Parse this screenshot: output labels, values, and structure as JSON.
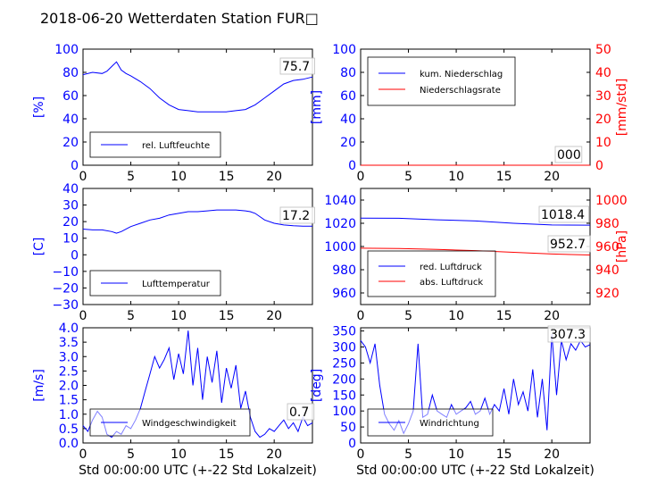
{
  "title": "2018-06-20 Wetterdaten Station FUR□",
  "colors": {
    "primary": "#0000ff",
    "secondary": "#ff0000"
  },
  "chart_data": [
    {
      "id": "humidity",
      "type": "line",
      "xlim": [
        0,
        24
      ],
      "ylim": [
        0,
        100
      ],
      "xticks": [
        "0",
        "5",
        "10",
        "15",
        "20"
      ],
      "yticks": [
        "0",
        "20",
        "40",
        "60",
        "80",
        "100"
      ],
      "ylabel": "[%]",
      "latest": "75.7",
      "legend": [
        "rel. Luftfeuchte"
      ],
      "series": [
        {
          "name": "rel. Luftfeuchte",
          "color": "#0000ff",
          "x": [
            0,
            1,
            2,
            2.5,
            3,
            3.5,
            4,
            4.5,
            5,
            6,
            7,
            8,
            9,
            10,
            11,
            12,
            13,
            14,
            15,
            16,
            17,
            17.5,
            18,
            19,
            20,
            21,
            22,
            23,
            24
          ],
          "y": [
            78,
            80,
            79,
            81,
            85,
            89,
            82,
            79,
            77,
            72,
            66,
            58,
            52,
            48,
            47,
            46,
            46,
            46,
            46,
            47,
            48,
            50,
            52,
            58,
            64,
            70,
            73,
            74,
            76
          ]
        }
      ]
    },
    {
      "id": "precipitation",
      "type": "line",
      "xlim": [
        0,
        24
      ],
      "ylim": [
        0,
        100
      ],
      "y2lim": [
        0,
        50
      ],
      "xticks": [
        "0",
        "5",
        "10",
        "15",
        "20"
      ],
      "yticks": [
        "0",
        "20",
        "40",
        "60",
        "80",
        "100"
      ],
      "y2ticks": [
        "0",
        "10",
        "20",
        "30",
        "40",
        "50"
      ],
      "ylabel": "[mm]",
      "y2label": "[mm/std]",
      "latest": "000",
      "legend": [
        "kum. Niederschlag",
        "Niederschlagsrate"
      ],
      "series": [
        {
          "name": "kum. Niederschlag",
          "color": "#0000ff",
          "axis": "left",
          "x": [
            0,
            24
          ],
          "y": [
            0,
            0
          ]
        },
        {
          "name": "Niederschlagsrate",
          "color": "#ff0000",
          "axis": "right",
          "x": [
            0,
            24
          ],
          "y": [
            0,
            0
          ]
        }
      ]
    },
    {
      "id": "temperature",
      "type": "line",
      "xlim": [
        0,
        24
      ],
      "ylim": [
        -30,
        40
      ],
      "xticks": [
        "0",
        "5",
        "10",
        "15",
        "20"
      ],
      "yticks": [
        "−30",
        "−20",
        "−10",
        "0",
        "10",
        "20",
        "30",
        "40"
      ],
      "ylabel": "[C]",
      "latest": "17.2",
      "legend": [
        "Lufttemperatur"
      ],
      "series": [
        {
          "name": "Lufttemperatur",
          "color": "#0000ff",
          "x": [
            0,
            1,
            2,
            3,
            3.5,
            4,
            5,
            6,
            7,
            8,
            9,
            10,
            11,
            12,
            13,
            14,
            15,
            16,
            17,
            17.5,
            18,
            19,
            20,
            21,
            22,
            23,
            24
          ],
          "y": [
            15.5,
            15,
            15,
            14,
            13,
            14,
            17,
            19,
            21,
            22,
            24,
            25,
            26,
            26,
            26.5,
            27,
            27,
            27,
            26.5,
            26,
            25,
            21,
            19,
            18,
            17.5,
            17.3,
            17.2
          ]
        }
      ]
    },
    {
      "id": "pressure",
      "type": "line",
      "xlim": [
        0,
        24
      ],
      "ylim": [
        950,
        1050
      ],
      "y2lim": [
        910,
        1010
      ],
      "xticks": [
        "0",
        "5",
        "10",
        "15",
        "20"
      ],
      "yticks": [
        "960",
        "980",
        "1000",
        "1020",
        "1040"
      ],
      "y2ticks": [
        "920",
        "940",
        "960",
        "980",
        "1000"
      ],
      "y2label": "[hPa]",
      "latest": [
        "1018.4",
        "952.7"
      ],
      "legend": [
        "red. Luftdruck",
        "abs. Luftdruck"
      ],
      "series": [
        {
          "name": "red. Luftdruck",
          "color": "#0000ff",
          "axis": "left",
          "x": [
            0,
            4,
            8,
            12,
            16,
            20,
            24
          ],
          "y": [
            1024.5,
            1024.3,
            1023,
            1022,
            1020,
            1018.5,
            1018.4
          ]
        },
        {
          "name": "abs. Luftdruck",
          "color": "#ff0000",
          "axis": "right",
          "x": [
            0,
            4,
            8,
            12,
            16,
            20,
            24
          ],
          "y": [
            958.5,
            958.3,
            957.5,
            956.5,
            955,
            953.5,
            952.7
          ]
        }
      ]
    },
    {
      "id": "windspeed",
      "type": "line",
      "xlim": [
        0,
        24
      ],
      "ylim": [
        0,
        4
      ],
      "xticks": [
        "0",
        "5",
        "10",
        "15",
        "20"
      ],
      "yticks": [
        "0.0",
        "0.5",
        "1.0",
        "1.5",
        "2.0",
        "2.5",
        "3.0",
        "3.5",
        "4.0"
      ],
      "ylabel": "[m/s]",
      "xlabel": "Std 00:00:00 UTC (+-22 Std Lokalzeit)",
      "latest": "0.7",
      "legend": [
        "Windgeschwindigkeit"
      ],
      "series": [
        {
          "name": "Windgeschwindigkeit",
          "color": "#0000ff",
          "x": [
            0,
            0.5,
            1,
            1.5,
            2,
            2.5,
            3,
            3.5,
            4,
            4.5,
            5,
            5.5,
            6,
            6.5,
            7,
            7.5,
            8,
            8.5,
            9,
            9.5,
            10,
            10.5,
            11,
            11.5,
            12,
            12.5,
            13,
            13.5,
            14,
            14.5,
            15,
            15.5,
            16,
            16.5,
            17,
            17.5,
            18,
            18.5,
            19,
            19.5,
            20,
            20.5,
            21,
            21.5,
            22,
            22.5,
            23,
            23.5,
            24
          ],
          "y": [
            0.6,
            0.4,
            0.8,
            1.1,
            0.9,
            0.3,
            0.2,
            0.4,
            0.3,
            0.6,
            0.5,
            0.8,
            1.2,
            1.8,
            2.4,
            3.0,
            2.6,
            2.9,
            3.3,
            2.2,
            3.1,
            2.4,
            3.9,
            2.0,
            3.3,
            1.5,
            3.0,
            2.1,
            3.2,
            1.4,
            2.6,
            1.9,
            2.7,
            1.2,
            1.8,
            0.9,
            0.4,
            0.2,
            0.3,
            0.5,
            0.4,
            0.6,
            0.8,
            0.5,
            0.7,
            0.4,
            0.9,
            0.6,
            0.7
          ]
        }
      ]
    },
    {
      "id": "winddirection",
      "type": "line",
      "xlim": [
        0,
        24
      ],
      "ylim": [
        0,
        360
      ],
      "xticks": [
        "0",
        "5",
        "10",
        "15",
        "20"
      ],
      "yticks": [
        "0",
        "50",
        "100",
        "150",
        "200",
        "250",
        "300",
        "350"
      ],
      "ylabel": "[deg]",
      "xlabel": "Std 00:00:00 UTC (+-22 Std Lokalzeit)",
      "latest": "307.3",
      "legend": [
        "Windrichtung"
      ],
      "series": [
        {
          "name": "Windrichtung",
          "color": "#0000ff",
          "x": [
            0,
            0.5,
            1,
            1.5,
            2,
            2.5,
            3,
            3.5,
            4,
            4.5,
            5,
            5.5,
            6,
            6.5,
            7,
            7.5,
            8,
            8.5,
            9,
            9.5,
            10,
            10.5,
            11,
            11.5,
            12,
            12.5,
            13,
            13.5,
            14,
            14.5,
            15,
            15.5,
            16,
            16.5,
            17,
            17.5,
            18,
            18.5,
            19,
            19.5,
            20,
            20.5,
            21,
            21.5,
            22,
            22.5,
            23,
            23.5,
            24
          ],
          "y": [
            320,
            300,
            250,
            310,
            180,
            90,
            60,
            40,
            70,
            30,
            60,
            100,
            310,
            80,
            90,
            150,
            100,
            90,
            80,
            120,
            90,
            100,
            110,
            130,
            90,
            100,
            140,
            90,
            120,
            100,
            170,
            90,
            200,
            120,
            160,
            100,
            230,
            80,
            200,
            40,
            340,
            150,
            320,
            260,
            310,
            290,
            320,
            300,
            307.3
          ]
        }
      ]
    }
  ]
}
